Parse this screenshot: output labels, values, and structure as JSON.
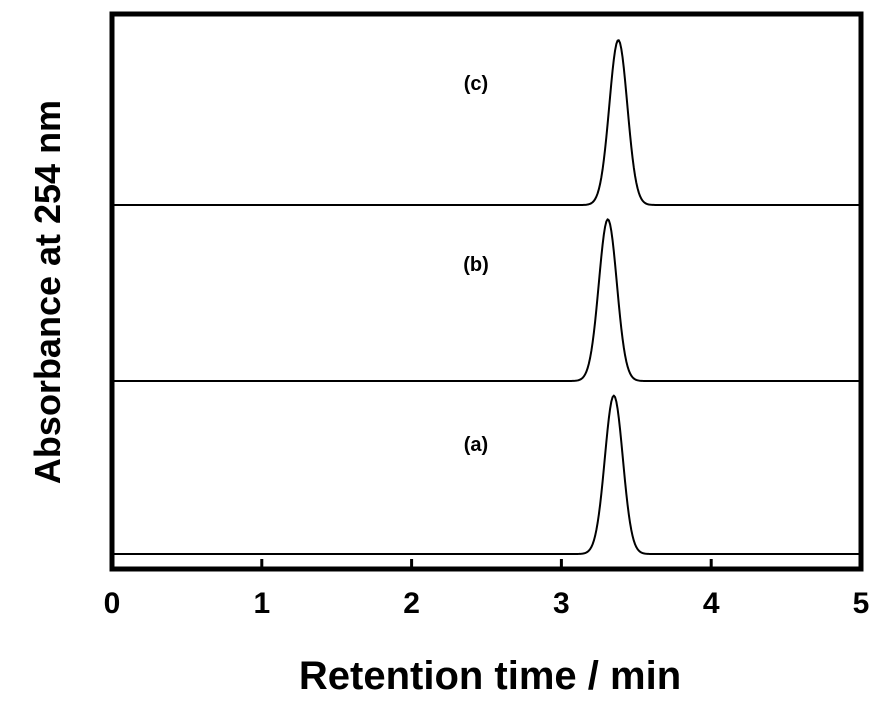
{
  "chart_data": {
    "type": "line",
    "title": "",
    "xlabel": "Retention time / min",
    "ylabel": "Absorbance at 254 nm",
    "xlim": [
      0,
      5
    ],
    "x_ticks": [
      "0",
      "1",
      "2",
      "3",
      "4",
      "5"
    ],
    "y_ticks": [],
    "grid": false,
    "legend": "none",
    "colors": {
      "trace": "#000000",
      "frame": "#000000",
      "background": "#ffffff"
    },
    "series": [
      {
        "label": "(a)",
        "peak_retention_time": 3.35,
        "peak_sigma": 0.06,
        "relative_height": 0.96
      },
      {
        "label": "(b)",
        "peak_retention_time": 3.31,
        "peak_sigma": 0.06,
        "relative_height": 0.98
      },
      {
        "label": "(c)",
        "peak_retention_time": 3.38,
        "peak_sigma": 0.06,
        "relative_height": 1.0
      }
    ]
  }
}
